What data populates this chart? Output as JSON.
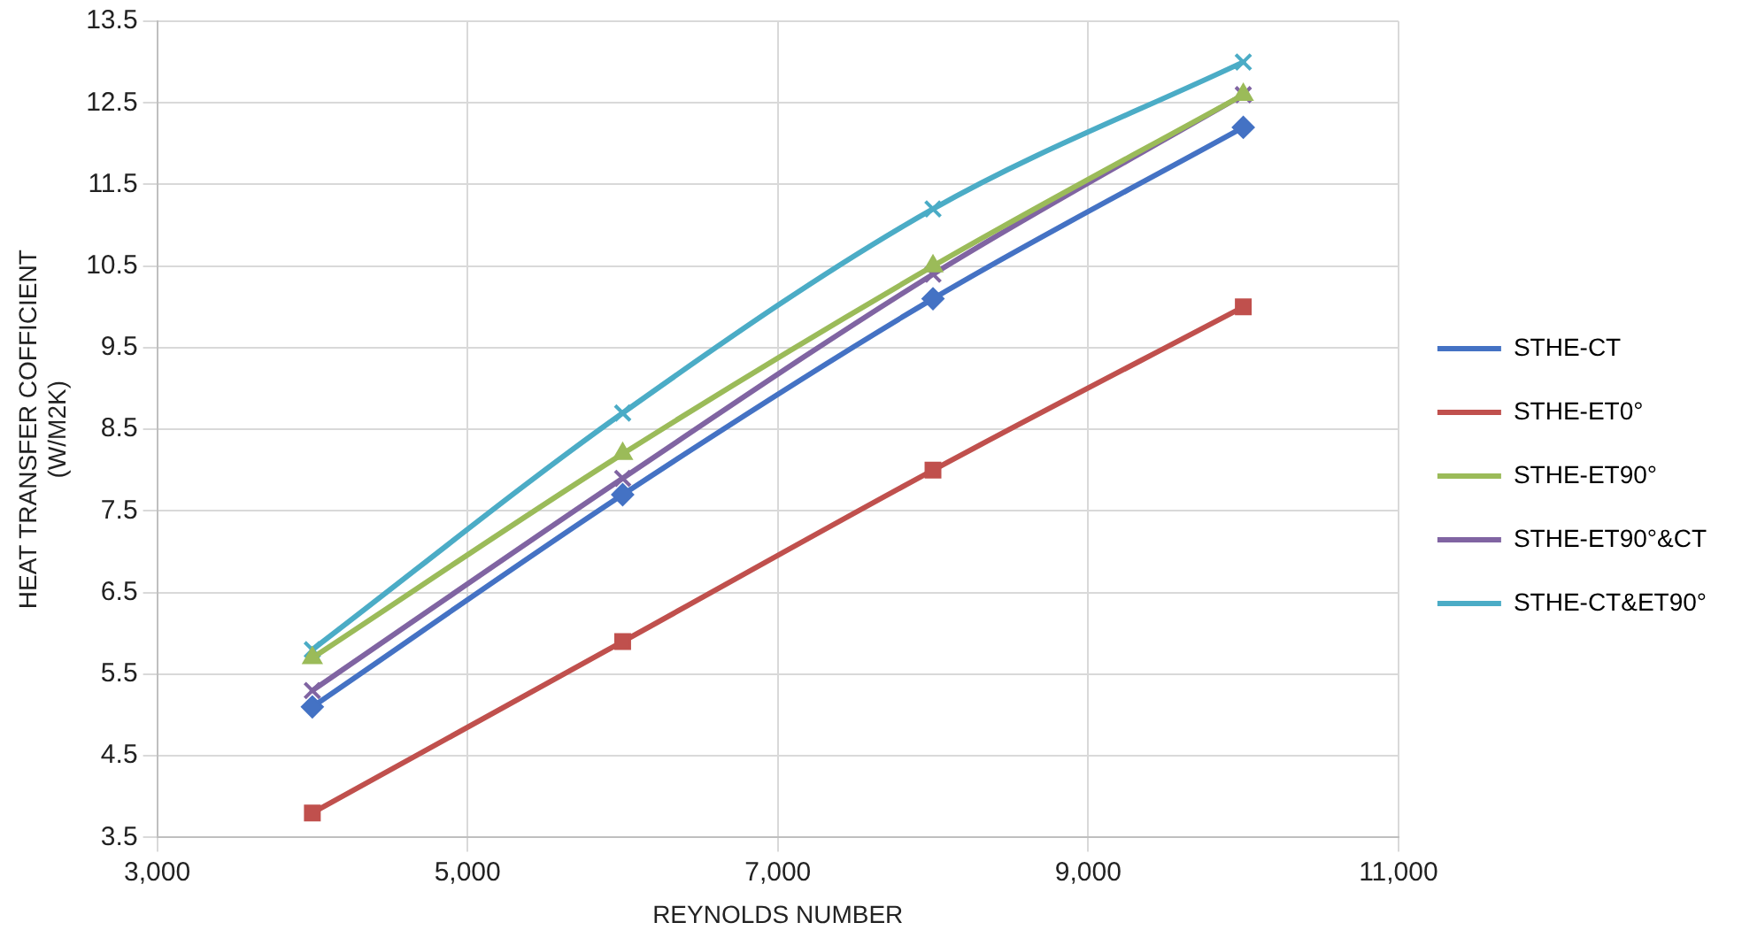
{
  "chart_data": {
    "type": "line",
    "xlabel": "REYNOLDS NUMBER",
    "ylabel": "HEAT TRANSFER COFFICIENT\n(W/M2K)",
    "x": [
      4000,
      6000,
      8000,
      10000
    ],
    "series": [
      {
        "name": "STHE-CT",
        "color": "#4472c4",
        "marker": "diamond",
        "values": [
          5.1,
          7.7,
          10.1,
          12.2
        ]
      },
      {
        "name": "STHE-ET0°",
        "color": "#c0504d",
        "marker": "square",
        "values": [
          3.8,
          5.9,
          8.0,
          10.0
        ]
      },
      {
        "name": "STHE-ET90°",
        "color": "#9bbb59",
        "marker": "triangle",
        "values": [
          5.7,
          8.2,
          10.5,
          12.6
        ]
      },
      {
        "name": "STHE-ET90°&CT",
        "color": "#8064a2",
        "marker": "cross",
        "values": [
          5.3,
          7.9,
          10.4,
          12.6
        ]
      },
      {
        "name": "STHE-CT&ET90°",
        "color": "#4bacc6",
        "marker": "cross",
        "values": [
          5.8,
          8.7,
          11.2,
          13.0
        ]
      }
    ],
    "xlim": [
      3000,
      11000
    ],
    "xticks": [
      {
        "value": 3000,
        "label": "3,000"
      },
      {
        "value": 5000,
        "label": "5,000"
      },
      {
        "value": 7000,
        "label": "7,000"
      },
      {
        "value": 9000,
        "label": "9,000"
      },
      {
        "value": 11000,
        "label": "11,000"
      }
    ],
    "ylim": [
      3.5,
      13.5
    ],
    "yticks": [
      3.5,
      4.5,
      5.5,
      6.5,
      7.5,
      8.5,
      9.5,
      10.5,
      11.5,
      12.5,
      13.5
    ],
    "grid": true,
    "legend": "right",
    "line_style": "solid"
  }
}
